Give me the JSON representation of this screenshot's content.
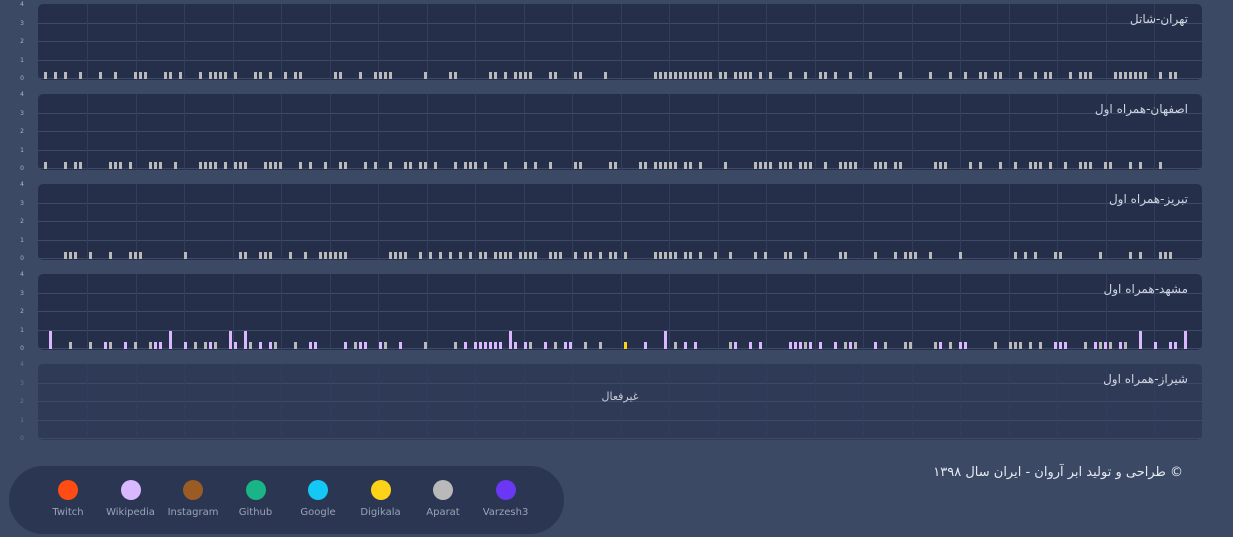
{
  "panels": [
    {
      "title": "تهران-شاتل",
      "active": true,
      "y_ticks": [
        "4",
        "3",
        "2",
        "1",
        "0"
      ],
      "bar_color": "#b9b9b9",
      "bar_value": 0.4
    },
    {
      "title": "اصفهان-همراه اول",
      "active": true,
      "y_ticks": [
        "4",
        "3",
        "2",
        "1",
        "0"
      ],
      "bar_color": "#b9b9b9",
      "bar_value": 0.4
    },
    {
      "title": "تبریز-همراه اول",
      "active": true,
      "y_ticks": [
        "4",
        "3",
        "2",
        "1",
        "0"
      ],
      "bar_color": "#b9b9b9",
      "bar_value": 0.4
    },
    {
      "title": "مشهد-همراه اول",
      "active": true,
      "y_ticks": [
        "4",
        "3",
        "2",
        "1",
        "0"
      ],
      "bar_color": "#d9b8ff",
      "bar_value": 0.4
    },
    {
      "title": "شیراز-همراه اول",
      "active": false,
      "status": "غیرفعال",
      "y_ticks": [
        "4",
        "3",
        "2",
        "1",
        "0"
      ]
    }
  ],
  "legend": [
    {
      "label": "Twitch",
      "color": "#ff4b14"
    },
    {
      "label": "Wikipedia",
      "color": "#d9b8ff"
    },
    {
      "label": "Instagram",
      "color": "#9a5c24"
    },
    {
      "label": "Github",
      "color": "#1ab586"
    },
    {
      "label": "Google",
      "color": "#14c8f5"
    },
    {
      "label": "Digikala",
      "color": "#ffd21a"
    },
    {
      "label": "Aparat",
      "color": "#b9b9b9"
    },
    {
      "label": "Varzesh3",
      "color": "#6a37f5"
    }
  ],
  "footer": {
    "text": "© طراحی و تولید ابر آروان - ایران سال ۱۳۹۸"
  }
}
